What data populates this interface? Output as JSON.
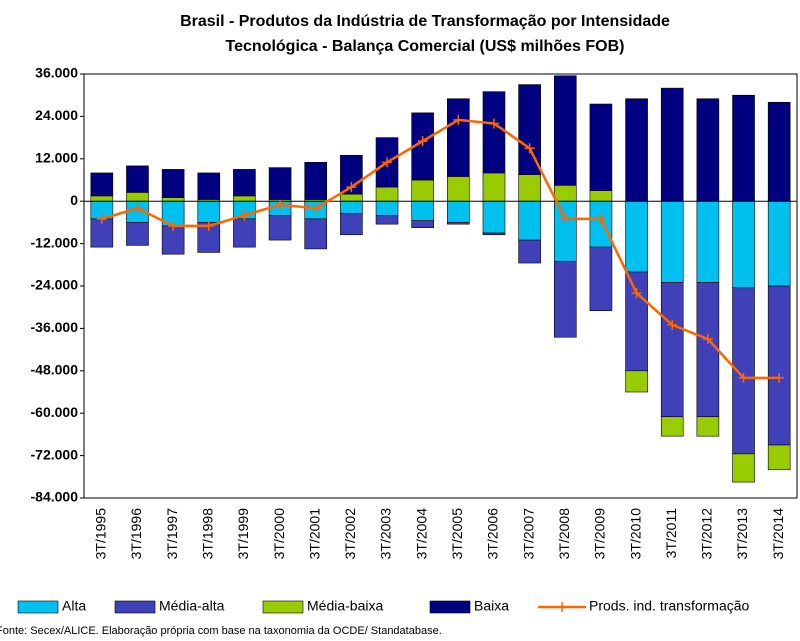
{
  "chart_data": {
    "type": "bar",
    "title": [
      "Brasil - Produtos da Indústria de Transformação por Intensidade",
      "Tecnológica - Balança Comercial (US$ milhões FOB)"
    ],
    "categories": [
      "3T/1995",
      "3T/1996",
      "3T/1997",
      "3T/1998",
      "3T/1999",
      "3T/2000",
      "3T/2001",
      "3T/2002",
      "3T/2003",
      "3T/2004",
      "3T/2005",
      "3T/2006",
      "3T/2007",
      "3T/2008",
      "3T/2009",
      "3T/2010",
      "3T/2011",
      "3T/2012",
      "3T/2013",
      "3T/2014"
    ],
    "series": [
      {
        "name": "Alta",
        "color": "#00c0f0",
        "type": "bar",
        "values": [
          -5000,
          -6000,
          -7000,
          -6000,
          -5000,
          -4000,
          -5000,
          -3500,
          -4000,
          -5500,
          -6000,
          -9000,
          -11000,
          -17000,
          -13000,
          -20000,
          -23000,
          -23000,
          -24500,
          -24000
        ]
      },
      {
        "name": "Média-alta",
        "color": "#4040b8",
        "type": "bar",
        "values": [
          -8000,
          -6500,
          -8000,
          -8500,
          -8000,
          -7000,
          -8500,
          -6000,
          -2500,
          -2000,
          -500,
          -500,
          -6500,
          -21500,
          -18000,
          -28000,
          -38000,
          -38000,
          -47000,
          -45000
        ]
      },
      {
        "name": "Média-baixa",
        "color": "#99cc00",
        "type": "bar",
        "values": [
          1500,
          2500,
          1000,
          500,
          1500,
          500,
          500,
          2000,
          4000,
          6000,
          7000,
          8000,
          7500,
          4500,
          3000,
          -6000,
          -5500,
          -5500,
          -8000,
          -7000
        ]
      },
      {
        "name": "Baixa",
        "color": "#000080",
        "type": "bar",
        "values": [
          6500,
          7500,
          8000,
          7500,
          7500,
          9000,
          10500,
          11000,
          14000,
          19000,
          22000,
          23000,
          25500,
          31000,
          24500,
          29000,
          32000,
          29000,
          30000,
          28000
        ]
      },
      {
        "name": "Prods. ind. transformação",
        "color": "#ff6600",
        "type": "line",
        "values": [
          -5000,
          -2000,
          -7000,
          -7000,
          -4000,
          -1000,
          -2000,
          4000,
          11000,
          17000,
          23000,
          22000,
          15000,
          -5000,
          -5000,
          -26000,
          -35000,
          -39000,
          -50000,
          -50000
        ]
      }
    ],
    "ylim": [
      -84000,
      36000
    ],
    "yticks": [
      {
        "value": 36000,
        "label": "36.000"
      },
      {
        "value": 24000,
        "label": "24.000"
      },
      {
        "value": 12000,
        "label": "12.000"
      },
      0,
      {
        "value": -12000,
        "label": "-12.000"
      },
      {
        "value": -24000,
        "label": "-24.000"
      },
      {
        "value": -36000,
        "label": "-36.000"
      },
      {
        "value": -48000,
        "label": "-48.000"
      },
      {
        "value": -60000,
        "label": "-60.000"
      },
      {
        "value": -72000,
        "label": "-72.000"
      },
      {
        "value": -84000,
        "label": "-84.000"
      }
    ],
    "grid": false,
    "legend": "bottom",
    "source": "Fonte: Secex/ALICE. Elaboração própria com base na taxonomia da OCDE/ Standatabase."
  }
}
